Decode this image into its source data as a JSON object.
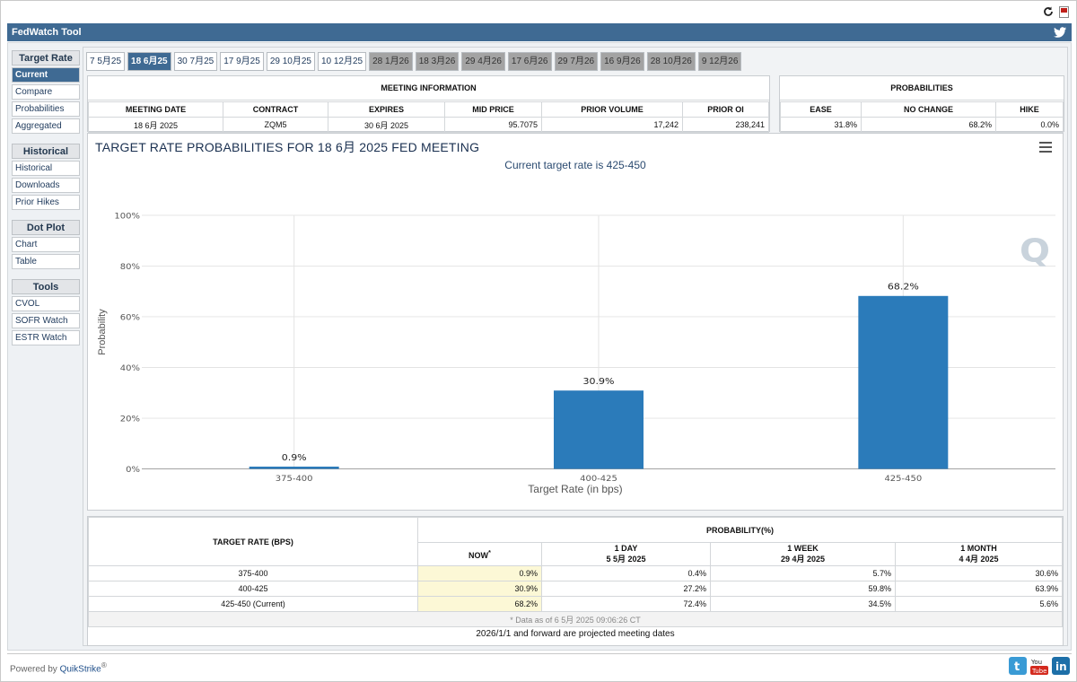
{
  "app_title": "FedWatch Tool",
  "sidebar": [
    {
      "header": "Target Rate",
      "items": [
        "Current",
        "Compare",
        "Probabilities",
        "Aggregated"
      ]
    },
    {
      "header": "Historical",
      "items": [
        "Historical",
        "Downloads",
        "Prior Hikes"
      ]
    },
    {
      "header": "Dot Plot",
      "items": [
        "Chart",
        "Table"
      ]
    },
    {
      "header": "Tools",
      "items": [
        "CVOL",
        "SOFR Watch",
        "ESTR Watch"
      ]
    }
  ],
  "tabs": [
    "7 5月25",
    "18 6月25",
    "30 7月25",
    "17 9月25",
    "29 10月25",
    "10 12月25",
    "28 1月26",
    "18 3月26",
    "29 4月26",
    "17 6月26",
    "29 7月26",
    "16 9月26",
    "28 10月26",
    "9 12月26"
  ],
  "selected_tab": "18 6月25",
  "meeting_info": {
    "title": "MEETING INFORMATION",
    "headers": [
      "MEETING DATE",
      "CONTRACT",
      "EXPIRES",
      "MID PRICE",
      "PRIOR VOLUME",
      "PRIOR OI"
    ],
    "values": [
      "18 6月 2025",
      "ZQM5",
      "30 6月 2025",
      "95.7075",
      "17,242",
      "238,241"
    ]
  },
  "probabilities": {
    "title": "PROBABILITIES",
    "headers": [
      "EASE",
      "NO CHANGE",
      "HIKE"
    ],
    "values": [
      "31.8%",
      "68.2%",
      "0.0%"
    ]
  },
  "chart_data": {
    "type": "bar",
    "title": "TARGET RATE PROBABILITIES FOR 18 6月 2025 FED MEETING",
    "subtitle": "Current target rate is 425-450",
    "categories": [
      "375-400",
      "400-425",
      "425-450"
    ],
    "values": [
      0.9,
      30.9,
      68.2
    ],
    "value_labels": [
      "0.9%",
      "30.9%",
      "68.2%"
    ],
    "xlabel": "Target Rate (in bps)",
    "ylabel": "Probability",
    "ylim": [
      0,
      100
    ],
    "yticks": [
      "0%",
      "20%",
      "40%",
      "60%",
      "80%",
      "100%"
    ],
    "bar_color": "#2b7bba",
    "grid": true
  },
  "prob_table": {
    "col_target": "TARGET RATE (BPS)",
    "col_prob": "PROBABILITY(%)",
    "sub_headers": [
      {
        "l1": "NOW",
        "l2": ""
      },
      {
        "l1": "1 DAY",
        "l2": "5 5月 2025"
      },
      {
        "l1": "1 WEEK",
        "l2": "29 4月 2025"
      },
      {
        "l1": "1 MONTH",
        "l2": "4 4月 2025"
      }
    ],
    "now_mark": "*",
    "rows": [
      {
        "rate": "375-400",
        "vals": [
          "0.9%",
          "0.4%",
          "5.7%",
          "30.6%"
        ]
      },
      {
        "rate": "400-425",
        "vals": [
          "30.9%",
          "27.2%",
          "59.8%",
          "63.9%"
        ]
      },
      {
        "rate": "425-450 (Current)",
        "vals": [
          "68.2%",
          "72.4%",
          "34.5%",
          "5.6%"
        ]
      }
    ],
    "note": "* Data as of 6 5月 2025 09:06:26 CT",
    "projected": "2026/1/1 and forward are projected meeting dates"
  },
  "footer": {
    "powered": "Powered by",
    "brand": "QuikStrike",
    "reg": "®"
  },
  "social_icons": [
    "twitter-icon",
    "youtube-icon",
    "linkedin-icon"
  ],
  "logo_letter": "Q"
}
